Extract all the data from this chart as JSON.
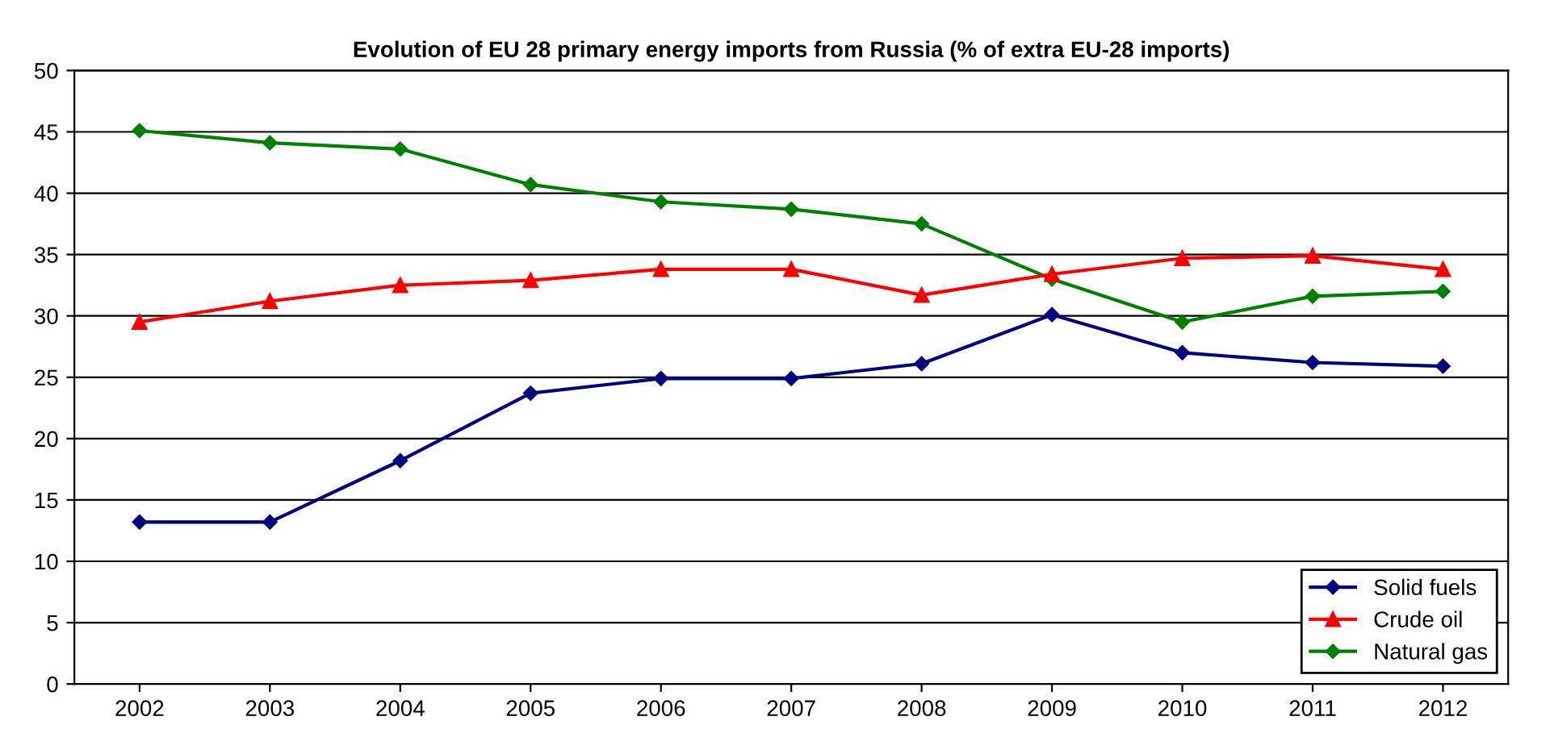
{
  "chart_data": {
    "type": "line",
    "title": "Evolution of EU 28 primary energy imports from Russia (% of extra EU-28 imports)",
    "categories": [
      "2002",
      "2003",
      "2004",
      "2005",
      "2006",
      "2007",
      "2008",
      "2009",
      "2010",
      "2011",
      "2012"
    ],
    "series": [
      {
        "name": "Solid fuels",
        "color": "#000080",
        "marker": "diamond",
        "values": [
          13.2,
          13.2,
          18.2,
          23.7,
          24.9,
          24.9,
          26.1,
          30.1,
          27.0,
          26.2,
          25.9
        ]
      },
      {
        "name": "Crude oil",
        "color": "#ff0000",
        "marker": "triangle",
        "values": [
          29.5,
          31.2,
          32.5,
          32.9,
          33.8,
          33.8,
          31.7,
          33.4,
          34.7,
          34.9,
          33.8
        ]
      },
      {
        "name": "Natural gas",
        "color": "#008000",
        "marker": "diamond",
        "values": [
          45.1,
          44.1,
          43.6,
          40.7,
          39.3,
          38.7,
          37.5,
          33.0,
          29.5,
          31.6,
          32.0
        ]
      }
    ],
    "ylim": [
      0,
      50
    ],
    "yticks": [
      0,
      5,
      10,
      15,
      20,
      25,
      30,
      35,
      40,
      45,
      50
    ],
    "grid": "y",
    "legend": "bottom right",
    "line_style": "solid"
  }
}
